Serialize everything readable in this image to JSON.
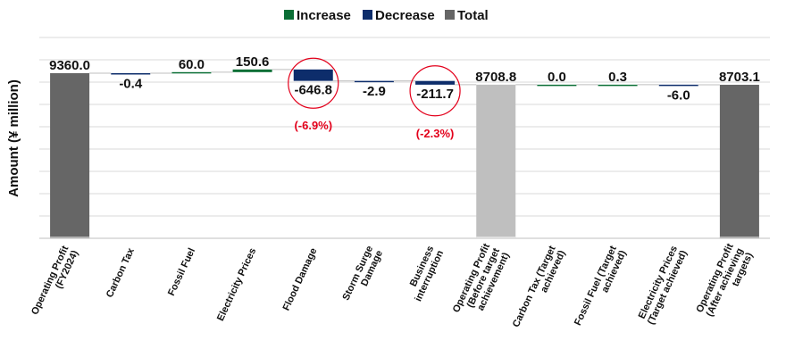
{
  "chart_data": {
    "type": "bar",
    "subtype": "waterfall",
    "title": "",
    "ylabel": "Amount (¥ million)",
    "xlabel": "",
    "grid": true,
    "legend_placement": "top-center",
    "legend": [
      {
        "name": "Increase",
        "color": "#0a6e35"
      },
      {
        "name": "Decrease",
        "color": "#0d2d6b"
      },
      {
        "name": "Total",
        "color": "#666666"
      }
    ],
    "colors": {
      "increase": "#0a6e35",
      "decrease": "#0d2d6b",
      "total": "#666666",
      "total_light": "#bfbfbf",
      "annotation": "#e3001b",
      "grid": "#d9d9d9"
    },
    "categories": [
      "Operating Profit (FY2024)",
      "Carbon Tax",
      "Fossil Fuel",
      "Electricity Prices",
      "Flood Damage",
      "Storm Surge Damage",
      "Business interruption",
      "Operating Profit (Before target achievement)",
      "Carbon Tax (Target achieved)",
      "Fossil Fuel (Target achieved)",
      "Electricity Prices (Target achieved)",
      "Operating Profit (After achieving targets)"
    ],
    "tick_lines": [
      [
        "Operating Profit",
        "(FY2024)"
      ],
      [
        "Carbon Tax"
      ],
      [
        "Fossil Fuel"
      ],
      [
        "Electricity Prices"
      ],
      [
        "Flood Damage"
      ],
      [
        "Storm Surge",
        "Damage"
      ],
      [
        "Business",
        "interruption"
      ],
      [
        "Operating Profit",
        "(Before target",
        "achievement)"
      ],
      [
        "Carbon Tax (Target",
        "achieved)"
      ],
      [
        "Fossil Fuel (Target",
        "achieved)"
      ],
      [
        "Electricity Prices",
        "(Target achieved)"
      ],
      [
        "Operating Profit",
        "(After achieving",
        "targets)"
      ]
    ],
    "values": [
      9360.0,
      -0.4,
      60.0,
      150.6,
      -646.8,
      -2.9,
      -211.7,
      8708.8,
      0.0,
      0.3,
      -6.0,
      8703.1
    ],
    "bar_kinds": [
      "total",
      "change",
      "change",
      "change",
      "change",
      "change",
      "change",
      "total_light",
      "change",
      "change",
      "change",
      "total"
    ],
    "value_labels": [
      "9360.0",
      "-0.4",
      "60.0",
      "150.6",
      "-646.8",
      "-2.9",
      "-211.7",
      "8708.8",
      "0.0",
      "0.3",
      "-6.0",
      "8703.1"
    ],
    "ylim": [
      0,
      10000
    ],
    "annotations": [
      {
        "category": "Flood Damage",
        "text": "(-6.9%)"
      },
      {
        "category": "Business interruption",
        "text": "(-2.3%)"
      }
    ]
  }
}
